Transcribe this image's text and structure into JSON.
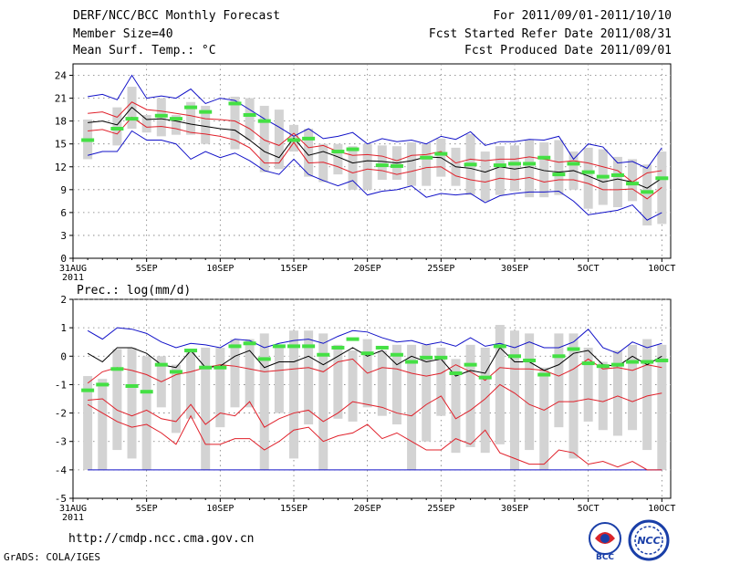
{
  "header": {
    "title": "DERF/NCC/BCC Monthly Forecast",
    "member_size": "Member Size=40",
    "variable_top": "Mean Surf. Temp.: °C",
    "period": "For 2011/09/01-2011/10/10",
    "started": "Fcst Started Refer Date 2011/08/31",
    "produced": "Fcst Produced Date 2011/09/01"
  },
  "footer": {
    "url": "http://cmdp.ncc.cma.gov.cn",
    "grads": "GrADS: COLA/IGES"
  },
  "logos": {
    "bcc_text": "BCC",
    "ncc_text": "NCC"
  },
  "colors": {
    "box": "#d3d3d3",
    "median": "#000000",
    "inner": "#e0202a",
    "outer": "#1010c8",
    "obs": "#44e044",
    "grid": "#7a7a7a"
  },
  "chart_data": [
    {
      "type": "line",
      "panel": "temperature",
      "title": "Mean Surf. Temp.: °C",
      "ylabel": "°C",
      "ylim": [
        0,
        25.5
      ],
      "yticks": [
        0,
        3,
        6,
        9,
        12,
        15,
        18,
        21,
        24
      ],
      "xticks": [
        {
          "day": 0,
          "label": "31AUG",
          "sub": "2011"
        },
        {
          "day": 5,
          "label": "5SEP"
        },
        {
          "day": 10,
          "label": "10SEP"
        },
        {
          "day": 15,
          "label": "15SEP"
        },
        {
          "day": 20,
          "label": "20SEP"
        },
        {
          "day": 25,
          "label": "25SEP"
        },
        {
          "day": 30,
          "label": "30SEP"
        },
        {
          "day": 35,
          "label": "5OCT"
        },
        {
          "day": 40,
          "label": "10OCT"
        }
      ],
      "days": [
        1,
        2,
        3,
        4,
        5,
        6,
        7,
        8,
        9,
        10,
        11,
        12,
        13,
        14,
        15,
        16,
        17,
        18,
        19,
        20,
        21,
        22,
        23,
        24,
        25,
        26,
        27,
        28,
        29,
        30,
        31,
        32,
        33,
        34,
        35,
        36,
        37,
        38,
        39,
        40
      ],
      "series": [
        {
          "name": "max",
          "role": "outer",
          "values": [
            21.2,
            21.5,
            20.8,
            24.0,
            21.0,
            21.3,
            21.0,
            22.2,
            20.3,
            21.0,
            20.7,
            19.5,
            18.3,
            17.2,
            16.0,
            17.0,
            15.7,
            16.0,
            16.5,
            15.0,
            15.7,
            15.3,
            15.5,
            15.0,
            16.0,
            15.6,
            16.6,
            14.8,
            15.3,
            15.3,
            15.6,
            15.5,
            16.0,
            13.0,
            15.0,
            14.6,
            12.5,
            12.7,
            11.8,
            14.5
          ]
        },
        {
          "name": "p75",
          "role": "inner",
          "values": [
            19.0,
            19.2,
            18.5,
            20.5,
            19.5,
            19.3,
            19.0,
            18.7,
            18.3,
            18.2,
            18.0,
            17.0,
            15.5,
            14.8,
            16.4,
            14.5,
            14.8,
            14.0,
            13.5,
            13.6,
            13.4,
            12.8,
            13.5,
            13.6,
            14.0,
            12.5,
            13.0,
            12.8,
            13.0,
            13.0,
            13.3,
            13.0,
            12.6,
            12.8,
            12.5,
            12.0,
            11.5,
            10.0,
            11.2,
            11.5
          ]
        },
        {
          "name": "median",
          "role": "median",
          "values": [
            17.8,
            18.0,
            17.5,
            19.8,
            18.2,
            18.3,
            18.0,
            17.6,
            17.3,
            17.0,
            16.8,
            15.5,
            14.0,
            13.2,
            15.8,
            13.5,
            14.0,
            13.3,
            12.5,
            12.8,
            12.7,
            12.5,
            12.8,
            13.3,
            13.2,
            12.0,
            11.8,
            11.3,
            12.0,
            11.7,
            12.0,
            11.5,
            11.3,
            11.5,
            10.8,
            10.0,
            10.4,
            10.0,
            9.2,
            10.5
          ]
        },
        {
          "name": "p25",
          "role": "inner",
          "values": [
            16.7,
            16.9,
            16.3,
            18.5,
            17.2,
            17.3,
            17.0,
            16.5,
            16.3,
            16.0,
            15.5,
            14.5,
            12.5,
            12.5,
            15.2,
            12.5,
            12.6,
            12.0,
            11.2,
            11.7,
            11.5,
            11.0,
            11.4,
            11.9,
            12.0,
            10.8,
            10.3,
            10.0,
            10.5,
            10.3,
            10.6,
            10.0,
            10.3,
            10.3,
            9.8,
            9.0,
            9.0,
            9.1,
            7.8,
            9.3
          ]
        },
        {
          "name": "min",
          "role": "outer",
          "values": [
            13.5,
            14.0,
            14.0,
            16.7,
            15.5,
            15.5,
            15.0,
            13.0,
            14.0,
            13.2,
            13.8,
            12.8,
            11.5,
            11.0,
            13.0,
            11.0,
            10.2,
            9.5,
            10.2,
            8.3,
            8.8,
            9.0,
            9.5,
            8.0,
            8.5,
            8.3,
            8.5,
            7.3,
            8.2,
            8.5,
            8.7,
            8.7,
            8.8,
            7.5,
            5.7,
            6.0,
            6.3,
            7.0,
            5.0,
            6.0
          ]
        },
        {
          "name": "observed",
          "role": "obs",
          "values": [
            15.5,
            null,
            17.0,
            18.3,
            null,
            18.7,
            18.3,
            19.8,
            19.2,
            null,
            20.3,
            18.8,
            18.0,
            null,
            15.5,
            15.7,
            null,
            14.0,
            14.3,
            null,
            12.2,
            12.1,
            null,
            13.2,
            13.7,
            null,
            12.3,
            null,
            12.2,
            12.4,
            12.4,
            13.2,
            11.0,
            12.4,
            11.3,
            10.7,
            10.9,
            9.8,
            8.7,
            10.5
          ]
        },
        {
          "name": "box_high",
          "role": "box",
          "values": [
            18.2,
            null,
            19.8,
            22.5,
            18.8,
            21.0,
            18.8,
            20.5,
            20.0,
            null,
            21.2,
            21.0,
            20.0,
            19.5,
            17.5,
            17.0,
            15.0,
            15.0,
            14.7,
            15.0,
            14.8,
            14.7,
            15.2,
            15.0,
            15.7,
            14.5,
            16.3,
            14.0,
            14.7,
            14.8,
            15.5,
            15.2,
            15.5,
            14.0,
            14.5,
            14.3,
            13.3,
            13.0,
            12.3,
            14.0
          ]
        },
        {
          "name": "box_low",
          "role": "box",
          "values": [
            13.0,
            null,
            14.8,
            17.0,
            16.5,
            16.0,
            16.2,
            16.2,
            15.0,
            null,
            14.3,
            15.5,
            11.3,
            11.7,
            14.0,
            10.7,
            10.0,
            11.0,
            9.0,
            9.0,
            10.3,
            10.3,
            9.5,
            9.5,
            10.7,
            9.5,
            8.3,
            7.5,
            8.3,
            8.8,
            8.0,
            8.0,
            8.3,
            9.0,
            6.5,
            7.0,
            6.7,
            7.5,
            4.3,
            4.5
          ]
        }
      ]
    },
    {
      "type": "line",
      "panel": "precipitation",
      "title": "Prec.: log(mm/d)",
      "ylabel": "log(mm/d)",
      "ylim": [
        -5,
        2
      ],
      "yticks": [
        -5,
        -4,
        -3,
        -2,
        -1,
        0,
        1,
        2
      ],
      "xticks": [
        {
          "day": 0,
          "label": "31AUG",
          "sub": "2011"
        },
        {
          "day": 5,
          "label": "5SEP"
        },
        {
          "day": 10,
          "label": "10SEP"
        },
        {
          "day": 15,
          "label": "15SEP"
        },
        {
          "day": 20,
          "label": "20SEP"
        },
        {
          "day": 25,
          "label": "25SEP"
        },
        {
          "day": 30,
          "label": "30SEP"
        },
        {
          "day": 35,
          "label": "5OCT"
        },
        {
          "day": 40,
          "label": "10OCT"
        }
      ],
      "days": [
        1,
        2,
        3,
        4,
        5,
        6,
        7,
        8,
        9,
        10,
        11,
        12,
        13,
        14,
        15,
        16,
        17,
        18,
        19,
        20,
        21,
        22,
        23,
        24,
        25,
        26,
        27,
        28,
        29,
        30,
        31,
        32,
        33,
        34,
        35,
        36,
        37,
        38,
        39,
        40
      ],
      "series": [
        {
          "name": "max",
          "role": "outer",
          "values": [
            0.9,
            0.6,
            1.0,
            0.95,
            0.8,
            0.5,
            0.3,
            0.45,
            0.4,
            0.3,
            0.6,
            0.55,
            0.3,
            0.45,
            0.55,
            0.6,
            0.45,
            0.7,
            0.9,
            0.85,
            0.65,
            0.5,
            0.55,
            0.4,
            0.5,
            0.35,
            0.65,
            0.35,
            0.45,
            0.3,
            0.5,
            0.3,
            0.3,
            0.5,
            0.95,
            0.3,
            0.1,
            0.5,
            0.3,
            0.45
          ]
        },
        {
          "name": "p75",
          "role": "inner",
          "values": [
            -0.95,
            -0.55,
            -0.4,
            -0.5,
            -0.65,
            -0.9,
            -0.65,
            -0.55,
            -0.4,
            -0.3,
            -0.35,
            -0.45,
            -0.55,
            -0.5,
            -0.45,
            -0.4,
            -0.55,
            -0.2,
            -0.1,
            -0.6,
            -0.4,
            -0.45,
            -0.6,
            -0.7,
            -0.6,
            -0.3,
            -0.55,
            -0.85,
            -0.4,
            -0.45,
            -0.45,
            -0.5,
            -0.7,
            -0.45,
            -0.1,
            -0.45,
            -0.4,
            -0.5,
            -0.3,
            -0.4
          ]
        },
        {
          "name": "median",
          "role": "median",
          "values": [
            0.1,
            -0.2,
            0.3,
            0.3,
            0.1,
            -0.3,
            -0.4,
            0.2,
            -0.4,
            -0.35,
            0.0,
            0.2,
            -0.4,
            -0.2,
            -0.2,
            0.0,
            -0.3,
            0.0,
            0.3,
            0.0,
            0.2,
            -0.3,
            0.0,
            -0.2,
            -0.1,
            -0.7,
            -0.5,
            -0.6,
            0.3,
            -0.2,
            -0.2,
            -0.5,
            -0.3,
            0.1,
            0.2,
            -0.3,
            -0.35,
            0.0,
            -0.3,
            0.0
          ]
        },
        {
          "name": "p25",
          "role": "inner",
          "values": [
            -1.55,
            -1.5,
            -1.9,
            -2.1,
            -1.9,
            -2.2,
            -2.3,
            -1.7,
            -2.4,
            -2.0,
            -2.1,
            -1.6,
            -2.5,
            -2.2,
            -2.0,
            -1.9,
            -2.3,
            -2.0,
            -1.6,
            -1.7,
            -1.8,
            -2.0,
            -2.1,
            -1.7,
            -1.4,
            -2.2,
            -1.9,
            -1.5,
            -1.0,
            -1.3,
            -1.7,
            -1.9,
            -1.6,
            -1.6,
            -1.5,
            -1.6,
            -1.4,
            -1.6,
            -1.4,
            -1.3
          ]
        },
        {
          "name": "min",
          "role": "outer",
          "values": [
            -4.0,
            -4.0,
            -4.0,
            -4.0,
            -4.0,
            -4.0,
            -4.0,
            -4.0,
            -4.0,
            -4.0,
            -4.0,
            -4.0,
            -4.0,
            -4.0,
            -4.0,
            -4.0,
            -4.0,
            -4.0,
            -4.0,
            -4.0,
            -4.0,
            -4.0,
            -4.0,
            -4.0,
            -4.0,
            -4.0,
            -4.0,
            -4.0,
            -4.0,
            -4.0,
            -4.0,
            -4.0,
            -4.0,
            -4.0,
            -4.0,
            -4.0,
            -4.0,
            -4.0,
            -4.0,
            -4.0
          ]
        },
        {
          "name": "p10",
          "role": "inner",
          "values": [
            -1.7,
            -2.0,
            -2.3,
            -2.5,
            -2.4,
            -2.7,
            -3.1,
            -2.1,
            -3.1,
            -3.1,
            -2.9,
            -2.9,
            -3.3,
            -3.0,
            -2.6,
            -2.5,
            -3.0,
            -2.8,
            -2.7,
            -2.4,
            -2.9,
            -2.7,
            -3.0,
            -3.3,
            -3.3,
            -2.9,
            -3.1,
            -2.6,
            -3.4,
            -3.6,
            -3.8,
            -3.8,
            -3.3,
            -3.4,
            -3.8,
            -3.7,
            -3.9,
            -3.7,
            -4.0,
            -4.0
          ]
        },
        {
          "name": "observed",
          "role": "obs",
          "values": [
            -1.2,
            -1.0,
            -0.45,
            -1.05,
            -1.25,
            -0.3,
            -0.55,
            0.2,
            -0.4,
            -0.4,
            0.35,
            0.45,
            -0.1,
            0.35,
            0.35,
            0.35,
            0.05,
            0.3,
            0.6,
            0.1,
            0.3,
            0.05,
            -0.2,
            -0.05,
            -0.05,
            -0.6,
            -0.3,
            -0.75,
            0.35,
            0.0,
            -0.15,
            -0.65,
            0.0,
            0.25,
            -0.25,
            -0.35,
            -0.3,
            -0.2,
            -0.2,
            -0.15
          ]
        },
        {
          "name": "box_high",
          "role": "box",
          "values": [
            -0.7,
            -0.8,
            0.25,
            0.3,
            0.0,
            0.0,
            -0.3,
            0.2,
            0.3,
            0.3,
            0.6,
            0.6,
            0.8,
            0.4,
            0.9,
            0.9,
            0.8,
            0.4,
            0.2,
            0.6,
            0.2,
            0.4,
            0.4,
            0.4,
            0.3,
            -0.1,
            0.4,
            0.3,
            1.1,
            0.9,
            0.8,
            -0.4,
            0.8,
            0.8,
            0.3,
            -0.2,
            0.2,
            0.4,
            0.6,
            0.4
          ]
        },
        {
          "name": "box_low",
          "role": "box",
          "values": [
            -4.0,
            -4.0,
            -3.3,
            -3.6,
            -4.0,
            -1.8,
            -2.7,
            -2.2,
            -4.0,
            -2.5,
            -1.8,
            -1.8,
            -4.0,
            -2.0,
            -3.6,
            -2.4,
            -4.0,
            -2.2,
            -2.3,
            -1.8,
            -2.1,
            -2.4,
            -4.0,
            -3.0,
            -2.1,
            -3.4,
            -3.2,
            -3.4,
            -3.1,
            -4.0,
            -3.3,
            -4.0,
            -2.5,
            -3.6,
            -2.3,
            -2.6,
            -2.8,
            -2.6,
            -3.3,
            -4.0
          ]
        }
      ]
    }
  ]
}
